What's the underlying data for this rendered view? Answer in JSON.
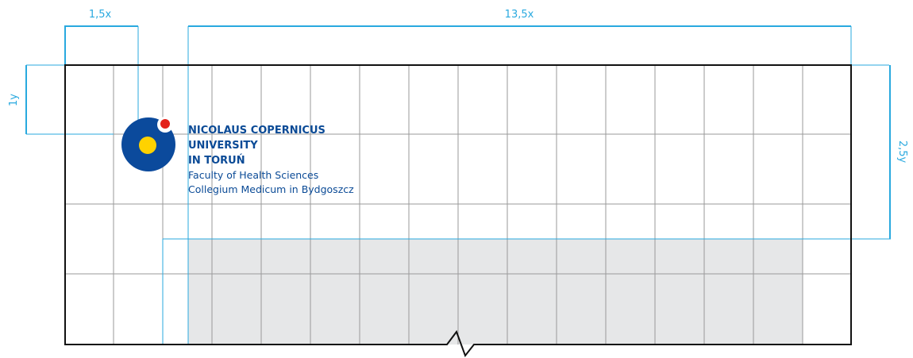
{
  "dimensions": {
    "left_width": "1,5x",
    "content_width": "13,5x",
    "top_height": "1y",
    "logo_height": "2,5y"
  },
  "logo": {
    "name_lines": [
      "NICOLAUS COPERNICUS",
      "UNIVERSITY",
      "IN TORUŃ"
    ],
    "faculty_lines": [
      "Faculty of Health Sciences",
      "Collegium Medicum in Bydgoszcz"
    ],
    "colors": {
      "blue": "#0b4a9c",
      "yellow": "#ffd200",
      "red": "#e32119"
    }
  },
  "colors": {
    "dimension": "#29a9df",
    "grid": "#9a9a9a",
    "frame": "#111111",
    "shaded_area": "#e6e7e8"
  }
}
